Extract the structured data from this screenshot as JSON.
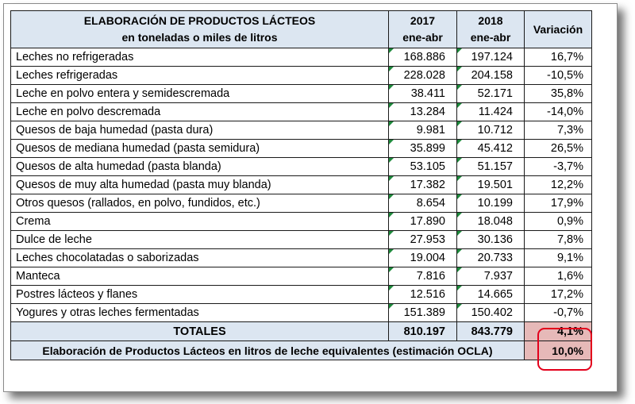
{
  "header": {
    "title_line1": "ELABORACIÓN DE PRODUCTOS LÁCTEOS",
    "title_line2": "en toneladas o miles de litros",
    "col1_year": "2017",
    "col1_period": "ene-abr",
    "col2_year": "2018",
    "col2_period": "ene-abr",
    "col3": "Variación"
  },
  "rows": [
    {
      "name": "Leches no refrigeradas",
      "v2017": "168.886",
      "v2018": "197.124",
      "var": "16,7%"
    },
    {
      "name": "Leches refrigeradas",
      "v2017": "228.028",
      "v2018": "204.158",
      "var": "-10,5%"
    },
    {
      "name": "Leche en polvo entera y semidescremada",
      "v2017": "38.411",
      "v2018": "52.171",
      "var": "35,8%"
    },
    {
      "name": "Leche en polvo descremada",
      "v2017": "13.284",
      "v2018": "11.424",
      "var": "-14,0%"
    },
    {
      "name": "Quesos de baja humedad (pasta dura)",
      "v2017": "9.981",
      "v2018": "10.712",
      "var": "7,3%"
    },
    {
      "name": "Quesos de mediana humedad (pasta semidura)",
      "v2017": "35.899",
      "v2018": "45.412",
      "var": "26,5%"
    },
    {
      "name": "Quesos de alta humedad (pasta blanda)",
      "v2017": "53.105",
      "v2018": "51.157",
      "var": "-3,7%"
    },
    {
      "name": "Quesos de muy alta humedad (pasta muy blanda)",
      "v2017": "17.382",
      "v2018": "19.501",
      "var": "12,2%"
    },
    {
      "name": "Otros quesos (rallados, en polvo, fundidos, etc.)",
      "v2017": "8.654",
      "v2018": "10.199",
      "var": "17,9%"
    },
    {
      "name": "Crema",
      "v2017": "17.890",
      "v2018": "18.048",
      "var": "0,9%"
    },
    {
      "name": "Dulce de leche",
      "v2017": "27.953",
      "v2018": "30.136",
      "var": "7,8%"
    },
    {
      "name": "Leches chocolatadas o saborizadas",
      "v2017": "19.004",
      "v2018": "20.733",
      "var": "9,1%"
    },
    {
      "name": "Manteca",
      "v2017": "7.816",
      "v2018": "7.937",
      "var": "1,6%"
    },
    {
      "name": "Postres lácteos y flanes",
      "v2017": "12.516",
      "v2018": "14.665",
      "var": "17,2%"
    },
    {
      "name": "Yogures y otras leches fermentadas",
      "v2017": "151.389",
      "v2018": "150.402",
      "var": "-0,7%"
    }
  ],
  "totals": {
    "label": "TOTALES",
    "v2017": "810.197",
    "v2018": "843.779",
    "var": "4,1%"
  },
  "footer": {
    "label": "Elaboración de Productos Lácteos en litros de leche equivalentes (estimación OCLA)",
    "var": "10,0%"
  },
  "colors": {
    "header_bg": "#dce6f1",
    "highlight_bg": "#e6b9b8",
    "highlight_border": "#e3001b",
    "cell_marker": "#1e8a3c"
  }
}
